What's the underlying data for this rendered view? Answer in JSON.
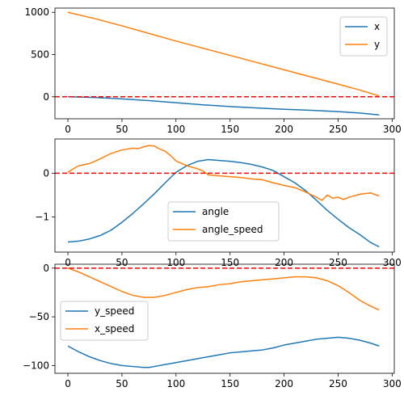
{
  "colors": {
    "blue": "#1f77b4",
    "orange": "#ff7f0e",
    "ref": "#ff0000"
  },
  "chart_data": [
    {
      "type": "line",
      "xlim": [
        -12,
        302
      ],
      "ylim": [
        -260,
        1050
      ],
      "xticks": [
        0,
        50,
        100,
        150,
        200,
        250,
        300
      ],
      "yticks": [
        0,
        500,
        1000
      ],
      "hline": 0,
      "legend_position": "upper right",
      "series": [
        {
          "name": "x",
          "color": "#1f77b4",
          "x": [
            0,
            25,
            50,
            75,
            100,
            125,
            150,
            175,
            200,
            225,
            250,
            270,
            288
          ],
          "y": [
            0,
            -8,
            -25,
            -45,
            -70,
            -95,
            -115,
            -132,
            -148,
            -160,
            -175,
            -192,
            -215
          ]
        },
        {
          "name": "y",
          "color": "#ff7f0e",
          "x": [
            0,
            25,
            50,
            75,
            100,
            125,
            150,
            175,
            200,
            225,
            250,
            270,
            288
          ],
          "y": [
            1000,
            925,
            840,
            750,
            660,
            575,
            490,
            405,
            320,
            235,
            150,
            80,
            10
          ]
        }
      ]
    },
    {
      "type": "line",
      "xlim": [
        -12,
        302
      ],
      "ylim": [
        -1.8,
        0.78
      ],
      "xticks": [
        0,
        50,
        100,
        150,
        200,
        250,
        300
      ],
      "yticks": [
        -1,
        0
      ],
      "hline": 0,
      "legend_position": "lower center",
      "series": [
        {
          "name": "angle",
          "color": "#1f77b4",
          "x": [
            0,
            10,
            20,
            30,
            40,
            50,
            60,
            70,
            80,
            90,
            100,
            110,
            120,
            130,
            140,
            150,
            160,
            170,
            180,
            190,
            200,
            210,
            220,
            230,
            240,
            250,
            260,
            270,
            280,
            288
          ],
          "y": [
            -1.57,
            -1.55,
            -1.5,
            -1.42,
            -1.3,
            -1.12,
            -0.92,
            -0.7,
            -0.47,
            -0.22,
            0.02,
            0.17,
            0.27,
            0.31,
            0.29,
            0.27,
            0.24,
            0.2,
            0.14,
            0.06,
            -0.08,
            -0.22,
            -0.4,
            -0.62,
            -0.85,
            -1.05,
            -1.24,
            -1.4,
            -1.58,
            -1.68
          ]
        },
        {
          "name": "angle_speed",
          "color": "#ff7f0e",
          "x": [
            0,
            5,
            10,
            20,
            30,
            40,
            50,
            60,
            65,
            70,
            75,
            80,
            85,
            90,
            95,
            100,
            110,
            120,
            125,
            130,
            140,
            150,
            160,
            170,
            180,
            190,
            200,
            210,
            220,
            230,
            235,
            240,
            245,
            250,
            255,
            260,
            270,
            280,
            288
          ],
          "y": [
            0.02,
            0.1,
            0.17,
            0.22,
            0.33,
            0.45,
            0.53,
            0.57,
            0.56,
            0.6,
            0.63,
            0.62,
            0.55,
            0.5,
            0.4,
            0.28,
            0.17,
            0.1,
            0.05,
            -0.04,
            -0.06,
            -0.08,
            -0.1,
            -0.13,
            -0.15,
            -0.22,
            -0.28,
            -0.33,
            -0.43,
            -0.55,
            -0.62,
            -0.5,
            -0.57,
            -0.55,
            -0.6,
            -0.55,
            -0.48,
            -0.45,
            -0.52
          ]
        }
      ]
    },
    {
      "type": "line",
      "xlim": [
        -12,
        302
      ],
      "ylim": [
        -108,
        4
      ],
      "xticks": [
        0,
        50,
        100,
        150,
        200,
        250,
        300
      ],
      "yticks": [
        -100,
        -50,
        0
      ],
      "hline": 0,
      "legend_position": "center left",
      "series": [
        {
          "name": "y_speed",
          "color": "#1f77b4",
          "x": [
            0,
            10,
            20,
            30,
            40,
            50,
            60,
            70,
            75,
            80,
            90,
            100,
            110,
            120,
            130,
            140,
            150,
            160,
            170,
            180,
            190,
            200,
            210,
            220,
            230,
            240,
            250,
            260,
            270,
            280,
            288
          ],
          "y": [
            -80,
            -86,
            -91,
            -95,
            -98,
            -100,
            -101,
            -102,
            -102,
            -101,
            -99,
            -97,
            -95,
            -93,
            -91,
            -89,
            -87,
            -86,
            -85,
            -84,
            -82,
            -79,
            -77,
            -75,
            -73,
            -72,
            -71,
            -72,
            -74,
            -77,
            -80
          ]
        },
        {
          "name": "x_speed",
          "color": "#ff7f0e",
          "x": [
            0,
            10,
            20,
            30,
            40,
            50,
            60,
            70,
            80,
            90,
            100,
            110,
            120,
            130,
            140,
            150,
            160,
            170,
            180,
            190,
            200,
            210,
            220,
            230,
            240,
            250,
            260,
            270,
            280,
            288
          ],
          "y": [
            0,
            -4,
            -9,
            -14,
            -19,
            -24,
            -28,
            -30,
            -30,
            -28,
            -25,
            -22,
            -20,
            -19,
            -17,
            -16,
            -14,
            -13,
            -12,
            -11,
            -10,
            -9,
            -9,
            -10,
            -13,
            -18,
            -25,
            -33,
            -39,
            -43
          ]
        }
      ]
    }
  ]
}
